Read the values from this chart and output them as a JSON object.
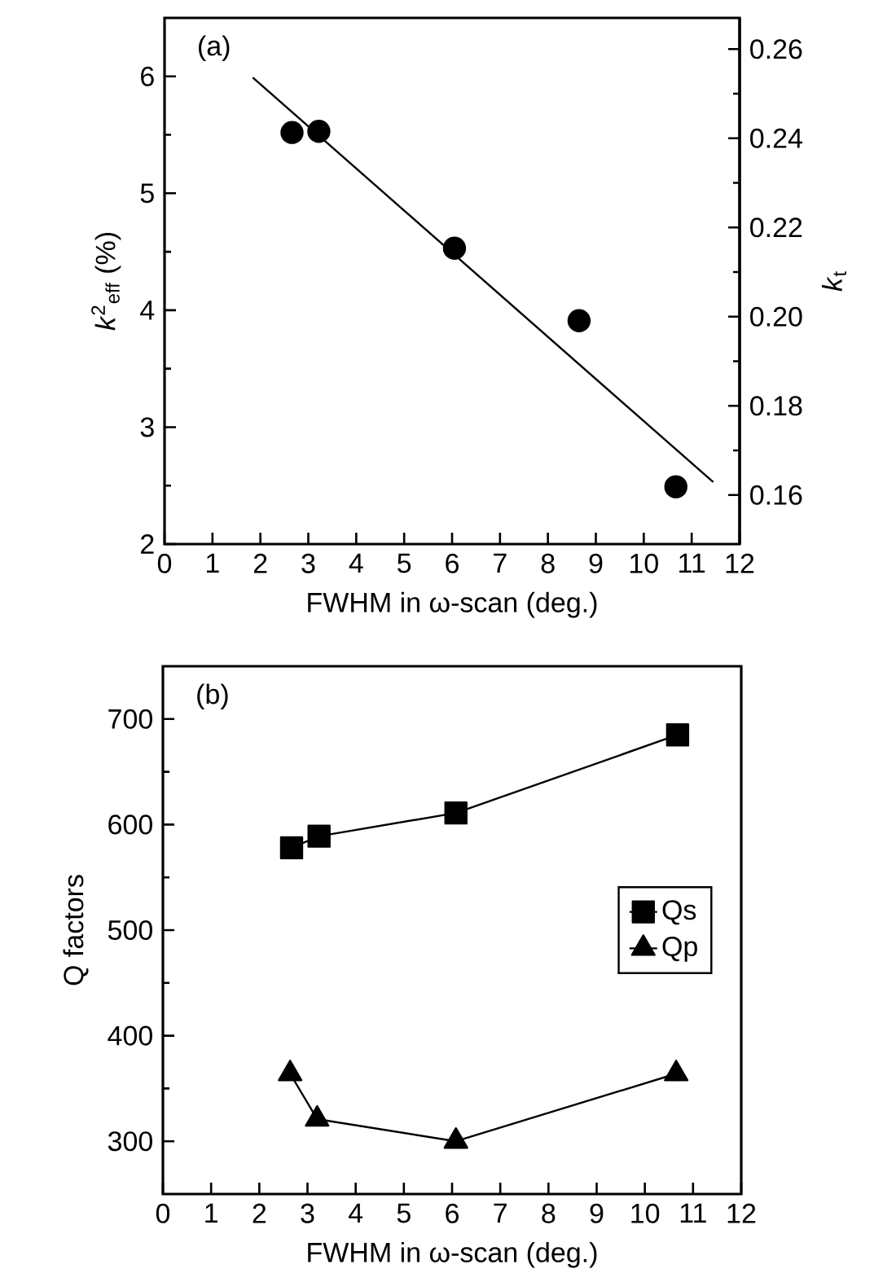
{
  "chart_data": [
    {
      "type": "scatter",
      "xlabel": "FWHM in ω-scan (deg.)",
      "ylabel": "*k*$^{2}$$_{eff}$ (%)",
      "y2label": "*k*$_{t}$",
      "annotations": [
        "(a)"
      ],
      "xlim": [
        0,
        12
      ],
      "xticks": [
        0,
        1,
        2,
        3,
        4,
        5,
        6,
        7,
        8,
        9,
        10,
        11,
        12
      ],
      "ylim": [
        2,
        6.5
      ],
      "yticks": [
        2,
        3,
        4,
        5,
        6
      ],
      "y2lim": [
        0.149,
        0.267
      ],
      "y2ticks": [
        0.16,
        0.18,
        {
          "value": 0.2,
          "label": "0.20"
        },
        0.22,
        0.24,
        0.26
      ],
      "series": [
        {
          "type": "scatter",
          "marker": "circle",
          "color": "#000000",
          "x": [
            2.66,
            3.22,
            6.05,
            8.65,
            10.67
          ],
          "values": [
            5.52,
            5.53,
            4.53,
            3.91,
            2.49
          ]
        },
        {
          "type": "line",
          "marker": "none",
          "line_style": "solid",
          "color": "#000000",
          "x": [
            1.84,
            11.45
          ],
          "values": [
            5.99,
            2.53
          ]
        }
      ]
    },
    {
      "type": "line",
      "xlabel": "FWHM in ω-scan (deg.)",
      "ylabel": "Q factors",
      "annotations": [
        "(b)"
      ],
      "legend": "right",
      "xlim": [
        0,
        12
      ],
      "xticks": [
        0,
        1,
        2,
        3,
        4,
        5,
        6,
        7,
        8,
        9,
        10,
        11,
        12
      ],
      "ylim": [
        250,
        750
      ],
      "yticks": [
        300,
        400,
        500,
        600,
        700
      ],
      "series": [
        {
          "name": "Qs",
          "marker": "square",
          "line_style": "solid",
          "color": "#000000",
          "x": [
            2.67,
            3.24,
            6.08,
            10.68
          ],
          "values": [
            578,
            589,
            611,
            685
          ]
        },
        {
          "name": "Qp",
          "marker": "triangle",
          "line_style": "solid",
          "color": "#000000",
          "x": [
            2.64,
            3.2,
            6.08,
            10.65
          ],
          "values": [
            364,
            321,
            300,
            364
          ]
        }
      ]
    }
  ]
}
